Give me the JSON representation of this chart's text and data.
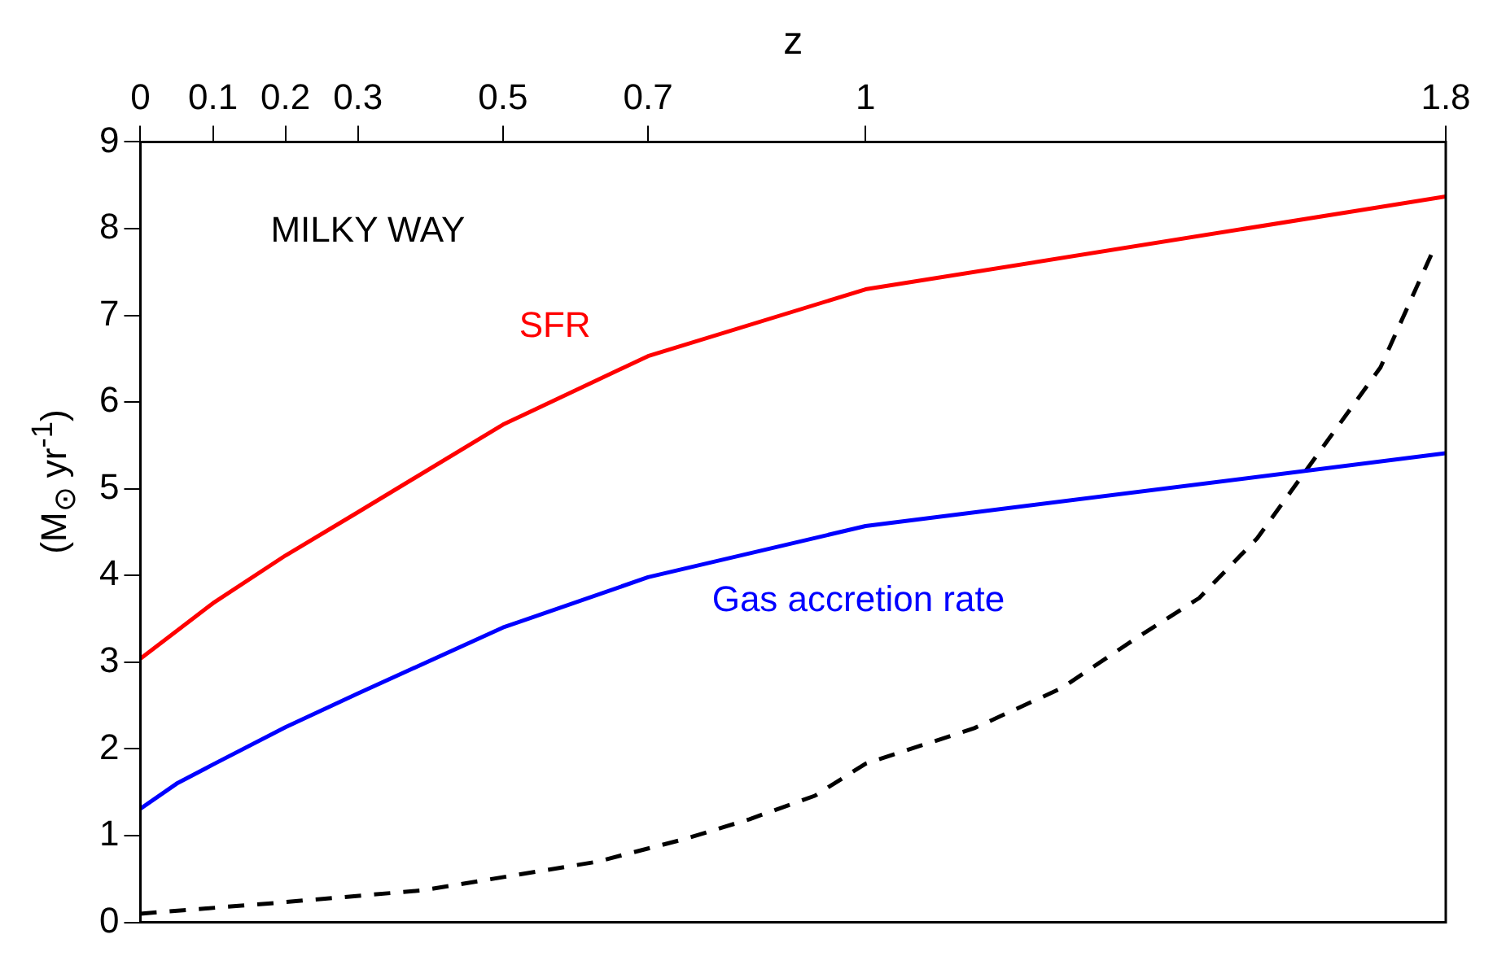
{
  "chart_data": {
    "type": "line",
    "xlabel": "z",
    "xlim": [
      0,
      1.8
    ],
    "xticks": [
      0,
      0.1,
      0.2,
      0.3,
      0.5,
      0.7,
      1,
      1.8
    ],
    "ylabel": "(M$_{⊙}$ yr$^{-1}$)",
    "ylim": [
      0,
      9
    ],
    "yticks": [
      0,
      1,
      2,
      3,
      4,
      5,
      6,
      7,
      8,
      9
    ],
    "grid": false,
    "legend": false,
    "marker": "none",
    "annotations": [
      "MILKY WAY"
    ],
    "series": [
      {
        "name": "SFR",
        "color": "#ff0000",
        "x": [
          0,
          0.1,
          0.2,
          0.3,
          0.5,
          0.7,
          1,
          1.8
        ],
        "values": [
          3.04,
          3.68,
          4.23,
          4.73,
          5.74,
          6.53,
          7.3,
          8.37
        ]
      },
      {
        "name": "Gas accretion rate",
        "color": "#0000ff",
        "x": [
          0,
          0.05,
          0.1,
          0.2,
          0.3,
          0.5,
          0.7,
          1,
          1.8
        ],
        "values": [
          1.31,
          1.6,
          1.82,
          2.25,
          2.64,
          3.4,
          3.98,
          4.57,
          5.41
        ]
      },
      {
        "color": "#000000",
        "line_style": "dashed",
        "x": [
          0,
          0.18,
          0.39,
          0.63,
          0.75,
          0.84,
          0.93,
          1.0,
          1.15,
          1.27,
          1.37,
          1.46,
          1.54,
          1.64,
          1.71,
          1.78
        ],
        "values": [
          0.1,
          0.22,
          0.37,
          0.7,
          0.96,
          1.19,
          1.46,
          1.83,
          2.24,
          2.7,
          3.26,
          3.74,
          4.43,
          5.59,
          6.4,
          7.7
        ]
      }
    ]
  }
}
